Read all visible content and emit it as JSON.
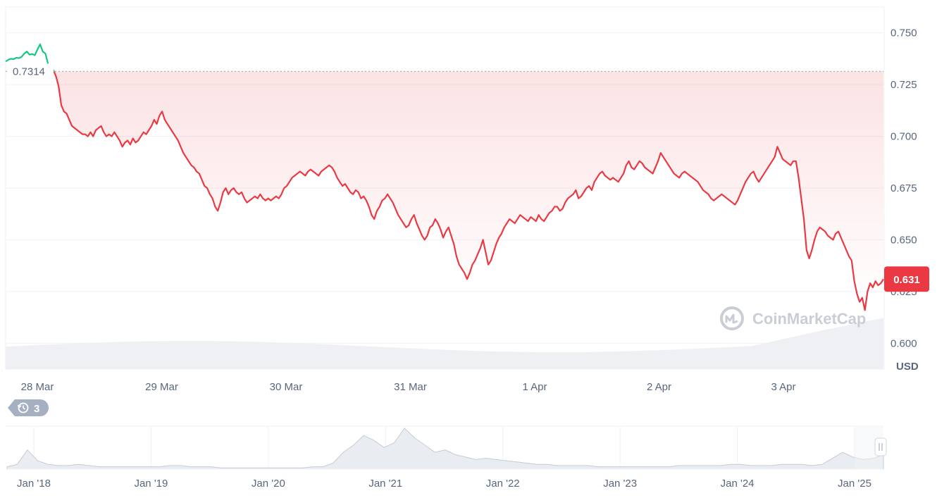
{
  "chart_data": {
    "type": "line",
    "unit": "USD",
    "y_ticks": [
      0.6,
      0.625,
      0.65,
      0.675,
      0.7,
      0.725,
      0.75
    ],
    "y_tick_labels": [
      "0.600",
      "0.625",
      "0.650",
      "0.675",
      "0.700",
      "0.725",
      "0.750"
    ],
    "ylim": [
      0.5875,
      0.7625
    ],
    "x_tick_labels": [
      "28 Mar",
      "29 Mar",
      "30 Mar",
      "31 Mar",
      "1 Apr",
      "2 Apr",
      "3 Apr"
    ],
    "start_price": 0.7314,
    "start_price_label": "0.7314",
    "current_price": 0.631,
    "current_price_label": "0.631",
    "colors": {
      "above": "#16c784",
      "below": "#ea3943",
      "badge": "#ea3943"
    },
    "series": [
      {
        "values": [
          0.7362,
          0.737,
          0.7375,
          0.7373,
          0.738,
          0.7378,
          0.7384,
          0.74,
          0.741,
          0.7395,
          0.7398,
          0.7392,
          0.742,
          0.7445,
          0.741,
          0.74,
          0.735,
          0.732,
          0.732,
          0.729,
          0.724,
          0.715,
          0.712,
          0.711,
          0.708,
          0.705,
          0.704,
          0.703,
          0.702,
          0.701,
          0.701,
          0.7,
          0.702,
          0.7,
          0.703,
          0.704,
          0.705,
          0.702,
          0.7,
          0.701,
          0.7,
          0.702,
          0.7,
          0.698,
          0.695,
          0.697,
          0.698,
          0.696,
          0.699,
          0.697,
          0.698,
          0.7,
          0.702,
          0.701,
          0.703,
          0.705,
          0.708,
          0.706,
          0.71,
          0.712,
          0.708,
          0.706,
          0.704,
          0.702,
          0.7,
          0.698,
          0.695,
          0.692,
          0.69,
          0.688,
          0.686,
          0.685,
          0.683,
          0.682,
          0.679,
          0.676,
          0.675,
          0.672,
          0.67,
          0.666,
          0.664,
          0.668,
          0.673,
          0.675,
          0.672,
          0.674,
          0.675,
          0.673,
          0.672,
          0.673,
          0.67,
          0.668,
          0.669,
          0.67,
          0.671,
          0.67,
          0.672,
          0.67,
          0.669,
          0.67,
          0.669,
          0.67,
          0.671,
          0.67,
          0.672,
          0.675,
          0.676,
          0.678,
          0.68,
          0.681,
          0.682,
          0.683,
          0.682,
          0.681,
          0.683,
          0.684,
          0.683,
          0.682,
          0.681,
          0.683,
          0.684,
          0.685,
          0.686,
          0.685,
          0.683,
          0.68,
          0.678,
          0.676,
          0.677,
          0.675,
          0.673,
          0.672,
          0.674,
          0.673,
          0.67,
          0.671,
          0.669,
          0.666,
          0.662,
          0.66,
          0.664,
          0.666,
          0.669,
          0.67,
          0.672,
          0.67,
          0.668,
          0.665,
          0.662,
          0.66,
          0.658,
          0.656,
          0.657,
          0.66,
          0.662,
          0.658,
          0.655,
          0.652,
          0.65,
          0.652,
          0.656,
          0.657,
          0.66,
          0.658,
          0.655,
          0.651,
          0.654,
          0.656,
          0.652,
          0.648,
          0.642,
          0.638,
          0.636,
          0.634,
          0.631,
          0.634,
          0.638,
          0.64,
          0.643,
          0.646,
          0.65,
          0.644,
          0.638,
          0.64,
          0.644,
          0.648,
          0.651,
          0.653,
          0.656,
          0.658,
          0.66,
          0.659,
          0.658,
          0.66,
          0.662,
          0.661,
          0.66,
          0.659,
          0.661,
          0.66,
          0.659,
          0.662,
          0.66,
          0.659,
          0.661,
          0.663,
          0.664,
          0.666,
          0.666,
          0.664,
          0.665,
          0.668,
          0.67,
          0.671,
          0.672,
          0.674,
          0.67,
          0.671,
          0.673,
          0.675,
          0.676,
          0.674,
          0.678,
          0.68,
          0.682,
          0.683,
          0.681,
          0.68,
          0.679,
          0.68,
          0.679,
          0.678,
          0.68,
          0.682,
          0.686,
          0.688,
          0.685,
          0.684,
          0.686,
          0.688,
          0.687,
          0.685,
          0.684,
          0.683,
          0.682,
          0.685,
          0.688,
          0.692,
          0.69,
          0.688,
          0.686,
          0.684,
          0.682,
          0.681,
          0.68,
          0.682,
          0.683,
          0.682,
          0.681,
          0.68,
          0.679,
          0.678,
          0.676,
          0.674,
          0.673,
          0.672,
          0.67,
          0.669,
          0.67,
          0.671,
          0.672,
          0.671,
          0.67,
          0.669,
          0.668,
          0.667,
          0.669,
          0.672,
          0.675,
          0.678,
          0.68,
          0.682,
          0.683,
          0.68,
          0.678,
          0.68,
          0.682,
          0.684,
          0.686,
          0.688,
          0.69,
          0.695,
          0.692,
          0.689,
          0.688,
          0.687,
          0.686,
          0.688,
          0.688,
          0.68,
          0.67,
          0.66,
          0.645,
          0.641,
          0.645,
          0.65,
          0.654,
          0.656,
          0.655,
          0.654,
          0.652,
          0.651,
          0.65,
          0.653,
          0.654,
          0.651,
          0.648,
          0.645,
          0.642,
          0.64,
          0.63,
          0.624,
          0.62,
          0.622,
          0.616,
          0.625,
          0.629,
          0.627,
          0.63,
          0.628,
          0.629,
          0.631
        ]
      }
    ]
  },
  "watermark": "CoinMarketCap",
  "history_count": "3",
  "navigator": {
    "tick_labels": [
      "Jan '18",
      "Jan '19",
      "Jan '20",
      "Jan '21",
      "Jan '22",
      "Jan '23",
      "Jan '24",
      "Jan '25"
    ],
    "values": [
      2,
      4,
      16,
      7,
      4,
      3,
      3,
      4,
      3,
      2,
      2,
      2,
      2,
      2,
      2,
      2,
      3,
      3,
      2,
      2,
      2,
      1,
      1,
      1,
      1,
      1,
      1,
      1,
      1,
      1,
      2,
      2,
      5,
      14,
      20,
      28,
      24,
      18,
      22,
      34,
      26,
      20,
      14,
      16,
      12,
      10,
      8,
      9,
      8,
      7,
      6,
      5,
      4,
      4,
      3,
      3,
      3,
      3,
      2,
      2,
      2,
      2,
      2,
      2,
      2,
      2,
      3,
      3,
      3,
      3,
      3,
      4,
      4,
      3,
      3,
      3,
      4,
      4,
      4,
      3,
      4,
      9,
      14,
      10,
      8,
      9,
      12
    ]
  }
}
